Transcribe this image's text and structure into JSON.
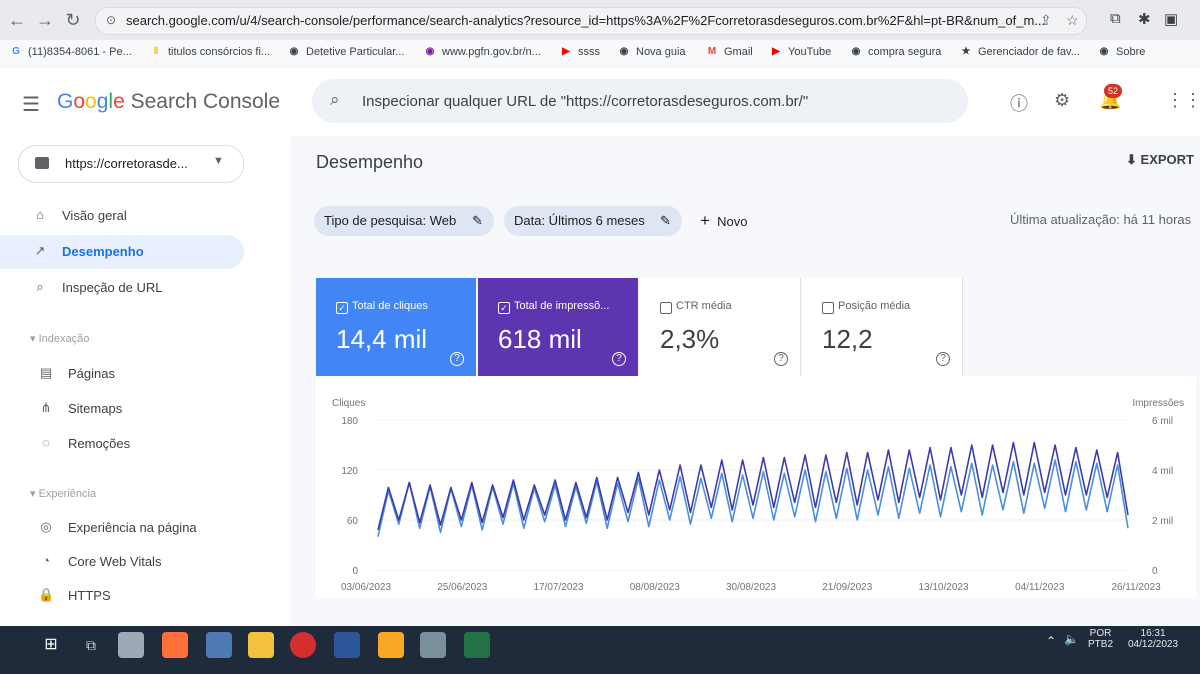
{
  "browser": {
    "url": "search.google.com/u/4/search-console/performance/search-analytics?resource_id=https%3A%2F%2Fcorretorasdeseguros.com.br%2F&hl=pt-BR&num_of_m...",
    "bookmarks": [
      {
        "label": "(11)8354-8061 - Pe...",
        "icon": "google-icon",
        "color": "#4285f4"
      },
      {
        "label": "titulos consórcios fi...",
        "icon": "sheet-icon",
        "color": "#f4b400"
      },
      {
        "label": "Detetive Particular...",
        "icon": "globe-icon",
        "color": "#3c4043"
      },
      {
        "label": "www.pgfn.gov.br/n...",
        "icon": "globe-icon",
        "color": "#7b1fa2"
      },
      {
        "label": "ssss",
        "icon": "youtube-icon",
        "color": "#ff0000"
      },
      {
        "label": "Nova guia",
        "icon": "globe-icon",
        "color": "#3c4043"
      },
      {
        "label": "Gmail",
        "icon": "gmail-icon",
        "color": "#ea4335"
      },
      {
        "label": "YouTube",
        "icon": "youtube-icon",
        "color": "#ff0000"
      },
      {
        "label": "compra segura",
        "icon": "globe-icon",
        "color": "#3c4043"
      },
      {
        "label": "Gerenciador de fav...",
        "icon": "star-icon",
        "color": "#3c4043"
      },
      {
        "label": "Sobre",
        "icon": "globe-icon",
        "color": "#3c4043"
      }
    ]
  },
  "app": {
    "logo_google": [
      "G",
      "o",
      "o",
      "g",
      "l",
      "e"
    ],
    "logo_product": "Search Console",
    "search_placeholder": "Inspecionar qualquer URL de \"https://corretorasdeseguros.com.br/\"",
    "notification_count": "52"
  },
  "sidebar": {
    "property": "https://corretorasde...",
    "items": [
      {
        "label": "Visão geral",
        "icon": "home-icon",
        "active": false
      },
      {
        "label": "Desempenho",
        "icon": "trending-up-icon",
        "active": true
      },
      {
        "label": "Inspeção de URL",
        "icon": "search-icon",
        "active": false
      }
    ],
    "section_indexing": "Indexação",
    "indexing_items": [
      {
        "label": "Páginas",
        "icon": "pages-icon"
      },
      {
        "label": "Sitemaps",
        "icon": "sitemap-icon"
      },
      {
        "label": "Remoções",
        "icon": "removals-icon"
      }
    ],
    "section_experience": "Experiência",
    "experience_items": [
      {
        "label": "Experiência na página",
        "icon": "page-experience-icon"
      },
      {
        "label": "Core Web Vitals",
        "icon": "gauge-icon"
      },
      {
        "label": "HTTPS",
        "icon": "lock-icon"
      }
    ]
  },
  "main": {
    "title": "Desempenho",
    "export_label": "EXPORT",
    "filters": {
      "search_type": "Tipo de pesquisa: Web",
      "date": "Data: Últimos 6 meses",
      "new": "Novo"
    },
    "last_update": "Última atualização: há 11 horas",
    "cards": [
      {
        "label": "Total de cliques",
        "value": "14,4 mil",
        "checked": true,
        "bg": "#4285f4"
      },
      {
        "label": "Total de impressõ...",
        "value": "618 mil",
        "checked": true,
        "bg": "#5e35b1"
      },
      {
        "label": "CTR média",
        "value": "2,3%",
        "checked": false,
        "bg": "#ffffff"
      },
      {
        "label": "Posição média",
        "value": "12,2",
        "checked": false,
        "bg": "#ffffff"
      }
    ]
  },
  "chart_data": {
    "type": "line",
    "xlabel": "",
    "y_left_label": "Cliques",
    "y_right_label": "Impressões",
    "y_left_ticks": [
      "180",
      "120",
      "60",
      "0"
    ],
    "y_right_ticks": [
      "6 mil",
      "4 mil",
      "2 mil",
      "0"
    ],
    "ylim_left": [
      0,
      180
    ],
    "ylim_right": [
      0,
      6000
    ],
    "x_ticks": [
      "03/06/2023",
      "25/06/2023",
      "17/07/2023",
      "08/08/2023",
      "30/08/2023",
      "21/09/2023",
      "13/10/2023",
      "04/11/2023",
      "26/11/2023"
    ],
    "series": [
      {
        "name": "Cliques",
        "color": "#4a8fe0",
        "values": [
          40,
          95,
          55,
          105,
          50,
          100,
          45,
          98,
          52,
          102,
          48,
          100,
          55,
          104,
          50,
          98,
          58,
          102,
          52,
          100,
          56,
          106,
          50,
          104,
          58,
          110,
          52,
          108,
          60,
          112,
          55,
          110,
          62,
          116,
          58,
          114,
          62,
          118,
          60,
          116,
          64,
          120,
          58,
          118,
          62,
          122,
          60,
          120,
          66,
          124,
          62,
          122,
          68,
          126,
          64,
          124,
          70,
          128,
          66,
          126,
          72,
          130,
          68,
          128,
          74,
          132,
          70,
          130,
          72,
          128,
          70,
          126,
          50
        ]
      },
      {
        "name": "Impressões",
        "color": "#3f3aa8",
        "values": [
          1600,
          3300,
          2000,
          3500,
          1900,
          3400,
          1800,
          3300,
          2000,
          3500,
          1900,
          3400,
          2100,
          3600,
          2000,
          3400,
          2200,
          3600,
          2000,
          3500,
          2100,
          3700,
          2000,
          3700,
          2300,
          3900,
          2200,
          4000,
          2400,
          4200,
          2300,
          4200,
          2500,
          4400,
          2400,
          4400,
          2600,
          4500,
          2500,
          4500,
          2700,
          4600,
          2500,
          4600,
          2700,
          4700,
          2600,
          4700,
          2800,
          4800,
          2700,
          4800,
          2900,
          4900,
          2800,
          4900,
          3000,
          5000,
          2900,
          5000,
          3100,
          5100,
          3000,
          5100,
          3100,
          5000,
          3000,
          4900,
          3000,
          4800,
          2900,
          4700,
          2200
        ]
      }
    ]
  },
  "taskbar": {
    "lang_top": "POR",
    "lang_bottom": "PTB2",
    "time": "16:31",
    "date": "04/12/2023"
  },
  "colors": {
    "accent": "#1a73e8",
    "clicks": "#4285f4",
    "impressions": "#5e35b1"
  }
}
